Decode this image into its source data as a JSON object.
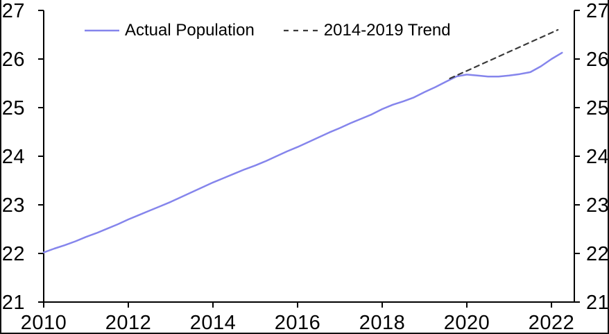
{
  "chart_data": {
    "type": "line",
    "title": "",
    "xlabel": "",
    "ylabel": "",
    "xlim": [
      2010,
      2022.54
    ],
    "ylim": [
      21,
      27
    ],
    "x_ticks": [
      2010,
      2012,
      2014,
      2016,
      2018,
      2020,
      2022
    ],
    "y_ticks": [
      21,
      22,
      23,
      24,
      25,
      26,
      27
    ],
    "y_axis_sides": [
      "left",
      "right"
    ],
    "grid": false,
    "legend_position": "top-inside-horizontal",
    "background_color": "#ffffff",
    "axis_color": "#000000",
    "series": [
      {
        "name": "Actual Population",
        "color": "#8585EC",
        "style": "solid",
        "width": 2.5,
        "x": [
          2010.0,
          2010.25,
          2010.5,
          2010.75,
          2011.0,
          2011.25,
          2011.5,
          2011.75,
          2012.0,
          2012.25,
          2012.5,
          2012.75,
          2013.0,
          2013.25,
          2013.5,
          2013.75,
          2014.0,
          2014.25,
          2014.5,
          2014.75,
          2015.0,
          2015.25,
          2015.5,
          2015.75,
          2016.0,
          2016.25,
          2016.5,
          2016.75,
          2017.0,
          2017.25,
          2017.5,
          2017.75,
          2018.0,
          2018.25,
          2018.5,
          2018.75,
          2019.0,
          2019.25,
          2019.5,
          2019.75,
          2020.0,
          2020.25,
          2020.5,
          2020.75,
          2021.0,
          2021.25,
          2021.5,
          2021.75,
          2022.0,
          2022.25
        ],
        "y": [
          22.02,
          22.1,
          22.17,
          22.25,
          22.34,
          22.42,
          22.51,
          22.6,
          22.7,
          22.79,
          22.88,
          22.97,
          23.06,
          23.16,
          23.26,
          23.36,
          23.46,
          23.55,
          23.64,
          23.73,
          23.81,
          23.9,
          24.0,
          24.1,
          24.19,
          24.29,
          24.39,
          24.49,
          24.58,
          24.68,
          24.77,
          24.86,
          24.97,
          25.06,
          25.13,
          25.21,
          25.32,
          25.42,
          25.53,
          25.64,
          25.68,
          25.66,
          25.64,
          25.64,
          25.66,
          25.69,
          25.73,
          25.85,
          26.0,
          26.13
        ]
      },
      {
        "name": "2014-2019 Trend",
        "color": "#3A3A3A",
        "style": "dashed",
        "width": 2.2,
        "x": [
          2019.6,
          2022.15
        ],
        "y": [
          25.6,
          26.6
        ]
      }
    ]
  }
}
